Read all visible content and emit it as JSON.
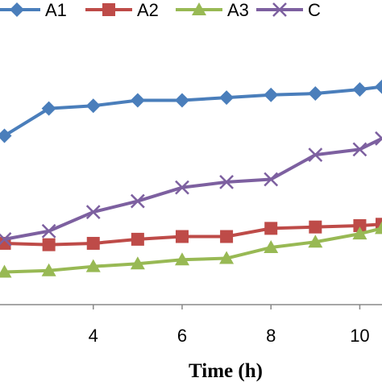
{
  "chart_data": {
    "type": "line",
    "title": "",
    "xlabel": "Time (h)",
    "ylabel": "",
    "xlim": [
      1.9,
      10.5
    ],
    "ylim": [
      0,
      100
    ],
    "xticks": [
      4,
      6,
      8,
      10
    ],
    "x_tick_labels": [
      "4",
      "6",
      "8",
      "10"
    ],
    "grid": false,
    "legend_position": "top",
    "series": [
      {
        "name": "A1",
        "color": "#4A7EBB",
        "marker": "diamond",
        "x": [
          2,
          3,
          4,
          5,
          6,
          7,
          8,
          9,
          10,
          10.5
        ],
        "y": [
          62,
          72,
          73,
          75,
          75,
          76,
          77,
          77.5,
          79,
          80
        ]
      },
      {
        "name": "A2",
        "color": "#BE4B48",
        "marker": "square",
        "x": [
          2,
          3,
          4,
          5,
          6,
          7,
          8,
          9,
          10,
          10.5
        ],
        "y": [
          22.5,
          22,
          22.5,
          24,
          25,
          25,
          28,
          28.5,
          29,
          29.5
        ]
      },
      {
        "name": "A3",
        "color": "#98B954",
        "marker": "triangle",
        "x": [
          2,
          3,
          4,
          5,
          6,
          7,
          8,
          9,
          10,
          10.5
        ],
        "y": [
          12,
          12.5,
          14,
          15,
          16.5,
          17,
          21,
          23,
          26,
          28
        ]
      },
      {
        "name": "C",
        "color": "#7D60A0",
        "marker": "x",
        "x": [
          2,
          3,
          4,
          5,
          6,
          7,
          8,
          9,
          10,
          10.5
        ],
        "y": [
          24,
          27,
          34,
          38,
          43,
          45,
          46,
          55,
          57,
          61
        ]
      }
    ]
  }
}
